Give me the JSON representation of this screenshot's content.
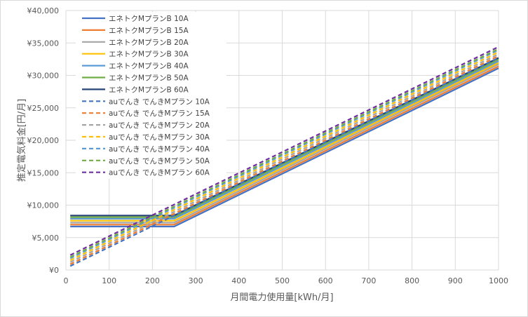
{
  "chart_data": {
    "type": "line",
    "xlabel": "月間電力使用量[kWh/月]",
    "ylabel": "推定電気料金[円/月]",
    "xlim": [
      0,
      1000
    ],
    "ylim": [
      0,
      40000
    ],
    "x_ticks": [
      "0",
      "100",
      "200",
      "300",
      "400",
      "500",
      "600",
      "700",
      "800",
      "900",
      "1000"
    ],
    "y_ticks": [
      "¥0",
      "¥5,000",
      "¥10,000",
      "¥15,000",
      "¥20,000",
      "¥25,000",
      "¥30,000",
      "¥35,000",
      "¥40,000"
    ],
    "grid": true,
    "legend_position": "top-left",
    "series": [
      {
        "name": "エネトクMプランB 10A",
        "color": "#4472c4",
        "dash": false,
        "x": [
          10,
          250,
          1000
        ],
        "y": [
          6700,
          6700,
          31100
        ]
      },
      {
        "name": "エネトクMプランB 15A",
        "color": "#ed7d31",
        "dash": false,
        "x": [
          10,
          250,
          1000
        ],
        "y": [
          7000,
          7000,
          31400
        ]
      },
      {
        "name": "エネトクMプランB 20A",
        "color": "#a5a5a5",
        "dash": false,
        "x": [
          10,
          250,
          1000
        ],
        "y": [
          7300,
          7300,
          31700
        ]
      },
      {
        "name": "エネトクMプランB 30A",
        "color": "#ffc000",
        "dash": false,
        "x": [
          10,
          250,
          1000
        ],
        "y": [
          7600,
          7600,
          31950
        ]
      },
      {
        "name": "エネトクMプランB 40A",
        "color": "#5b9bd5",
        "dash": false,
        "x": [
          10,
          250,
          1000
        ],
        "y": [
          7900,
          7900,
          32200
        ]
      },
      {
        "name": "エネトクMプランB 50A",
        "color": "#70ad47",
        "dash": false,
        "x": [
          10,
          250,
          1000
        ],
        "y": [
          8150,
          8150,
          32450
        ]
      },
      {
        "name": "エネトクMプランB 60A",
        "color": "#264478",
        "dash": false,
        "x": [
          10,
          250,
          1000
        ],
        "y": [
          8400,
          8400,
          32700
        ]
      },
      {
        "name": "auでんき でんきMプラン 10A",
        "color": "#4472c4",
        "dash": true,
        "x": [
          10,
          1000
        ],
        "y": [
          600,
          32700
        ]
      },
      {
        "name": "auでんき でんきMプラン 15A",
        "color": "#ed7d31",
        "dash": true,
        "x": [
          10,
          1000
        ],
        "y": [
          900,
          33000
        ]
      },
      {
        "name": "auでんき でんきMプラン 20A",
        "color": "#a5a5a5",
        "dash": true,
        "x": [
          10,
          1000
        ],
        "y": [
          1200,
          33300
        ]
      },
      {
        "name": "auでんき でんきMプラン 30A",
        "color": "#ffc000",
        "dash": true,
        "x": [
          10,
          1000
        ],
        "y": [
          1500,
          33600
        ]
      },
      {
        "name": "auでんき でんきMプラン 40A",
        "color": "#5b9bd5",
        "dash": true,
        "x": [
          10,
          1000
        ],
        "y": [
          1800,
          33900
        ]
      },
      {
        "name": "auでんき でんきMプラン 50A",
        "color": "#70ad47",
        "dash": true,
        "x": [
          10,
          1000
        ],
        "y": [
          2000,
          34100
        ]
      },
      {
        "name": "auでんき でんきMプラン 60A",
        "color": "#7030a0",
        "dash": true,
        "x": [
          10,
          1000
        ],
        "y": [
          2300,
          34400
        ]
      }
    ]
  }
}
